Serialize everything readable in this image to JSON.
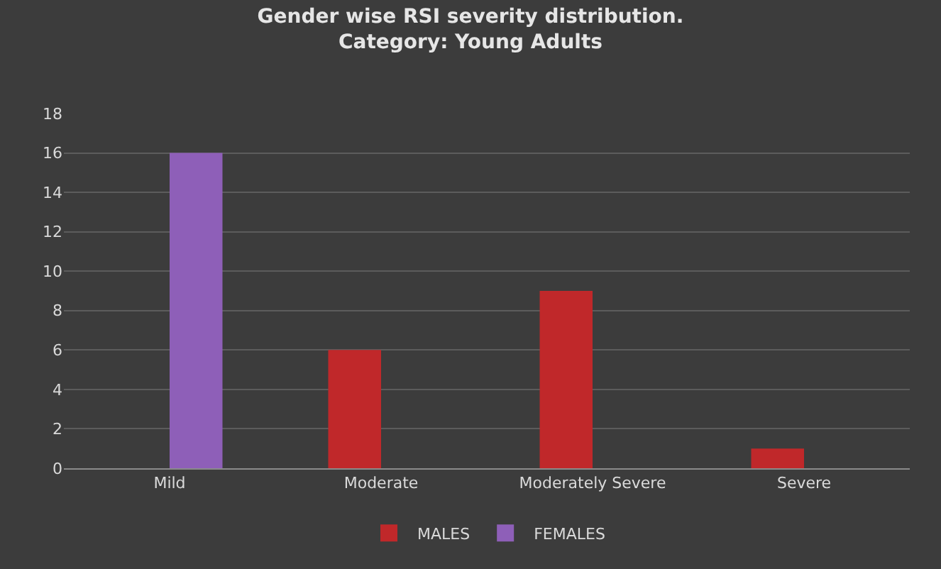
{
  "chart_data": {
    "type": "bar",
    "title": "Gender wise RSI severity distribution.\nCategory: Young Adults",
    "categories": [
      "Mild",
      "Moderate",
      "Moderately Severe",
      "Severe"
    ],
    "series": [
      {
        "name": "MALES",
        "color": "#c0282a",
        "values": [
          0,
          6,
          9,
          1
        ]
      },
      {
        "name": "FEMALES",
        "color": "#8e5fb8",
        "values": [
          16,
          0,
          0,
          0
        ]
      }
    ],
    "ylim": [
      0,
      18
    ],
    "yticks": [
      0,
      2,
      4,
      6,
      8,
      10,
      12,
      14,
      16,
      18
    ],
    "grid": "y",
    "legend": "bottom"
  }
}
